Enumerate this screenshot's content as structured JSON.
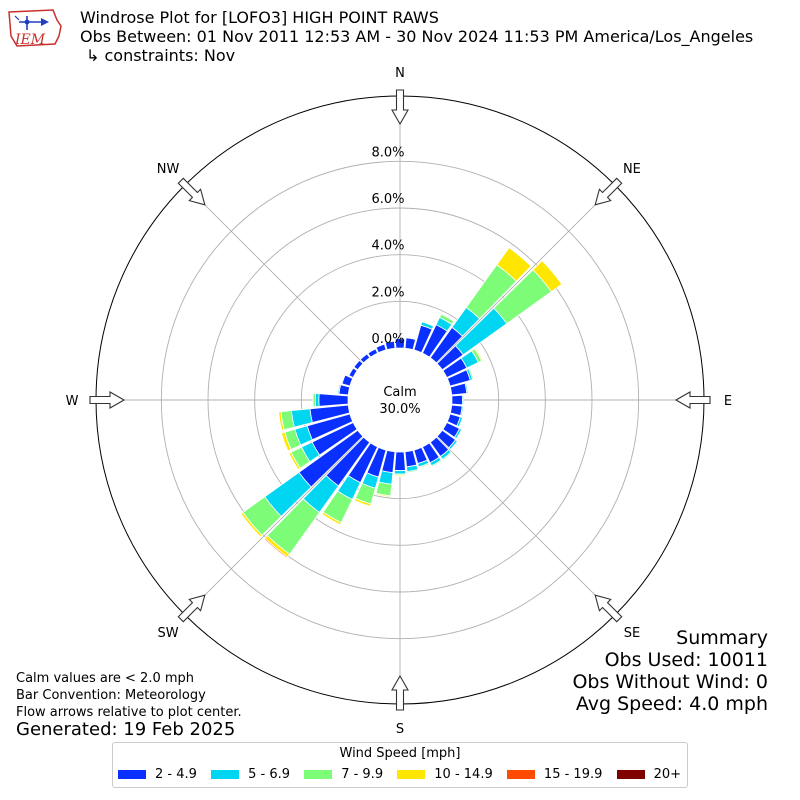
{
  "header": {
    "logo_text": "IEM",
    "title": "Windrose Plot for [LOFO3] HIGH POINT RAWS",
    "subtitle": "Obs Between: 01 Nov 2011 12:53 AM - 30 Nov 2024 11:53 PM America/Los_Angeles",
    "constraints": "↳ constraints: Nov"
  },
  "notes": {
    "calm_note": "Calm values are < 2.0 mph",
    "bar_convention": "Bar Convention: Meteorology",
    "flow_arrows": "Flow arrows relative to plot center.",
    "generated": "Generated: 19 Feb 2025"
  },
  "summary": {
    "heading": "Summary",
    "obs_used": "Obs Used: 10011",
    "obs_without_wind": "Obs Without Wind: 0",
    "avg_speed": "Avg Speed: 4.0 mph"
  },
  "calm": {
    "label": "Calm",
    "value": "30.0%"
  },
  "chart_data": {
    "type": "windrose",
    "directions_deg": [
      0,
      10,
      20,
      30,
      40,
      50,
      60,
      70,
      80,
      90,
      100,
      110,
      120,
      130,
      140,
      150,
      160,
      170,
      180,
      190,
      200,
      210,
      220,
      230,
      240,
      250,
      260,
      270,
      280,
      290,
      300,
      310,
      320,
      330,
      340,
      350
    ],
    "compass_labels": [
      {
        "label": "N",
        "deg": 0
      },
      {
        "label": "NE",
        "deg": 45
      },
      {
        "label": "E",
        "deg": 90
      },
      {
        "label": "SE",
        "deg": 135
      },
      {
        "label": "S",
        "deg": 180
      },
      {
        "label": "SW",
        "deg": 225
      },
      {
        "label": "W",
        "deg": 270
      },
      {
        "label": "NW",
        "deg": 315
      }
    ],
    "radial_ticks": [
      "0.0%",
      "2.0%",
      "4.0%",
      "6.0%",
      "8.0%"
    ],
    "radial_tick_values": [
      0,
      2,
      4,
      6,
      8
    ],
    "rmax": 10.8,
    "legend_title": "Wind Speed [mph]",
    "series": [
      {
        "name": "2 - 4.9",
        "color": "#0a30ff",
        "values": [
          0.4,
          0.45,
          1.1,
          1.35,
          1.6,
          1.1,
          0.95,
          0.9,
          0.65,
          0.45,
          0.45,
          0.45,
          0.6,
          0.7,
          0.75,
          0.75,
          0.6,
          0.65,
          0.8,
          0.9,
          1.2,
          1.7,
          2.3,
          3.1,
          1.95,
          1.9,
          1.65,
          1.25,
          0.4,
          0.35,
          0.2,
          0.2,
          0.2,
          0.2,
          0.25,
          0.3
        ]
      },
      {
        "name": "5 - 6.9",
        "color": "#00d6f2",
        "values": [
          0,
          0,
          0.15,
          0.35,
          1.05,
          2.3,
          0.55,
          0.1,
          0.05,
          0.05,
          0.05,
          0.1,
          0.1,
          0.1,
          0.15,
          0.15,
          0.15,
          0.2,
          0.15,
          0.5,
          0.5,
          0.8,
          1.4,
          1.8,
          0.5,
          0.55,
          0.8,
          0.15,
          0.05,
          0,
          0,
          0,
          0,
          0,
          0,
          0
        ]
      },
      {
        "name": "7 - 9.9",
        "color": "#7cfc77",
        "values": [
          0,
          0,
          0,
          0.15,
          2.25,
          2.35,
          0.15,
          0.05,
          0,
          0,
          0,
          0,
          0,
          0,
          0.05,
          0.05,
          0.05,
          0.05,
          0.05,
          0.5,
          0.7,
          1.1,
          2.2,
          1.15,
          0.5,
          0.45,
          0.45,
          0.1,
          0,
          0,
          0,
          0,
          0,
          0,
          0,
          0
        ]
      },
      {
        "name": "10 - 14.9",
        "color": "#ffe600",
        "values": [
          0,
          0,
          0,
          0,
          0.9,
          0.55,
          0.05,
          0,
          0,
          0,
          0,
          0,
          0,
          0,
          0,
          0,
          0,
          0,
          0.05,
          0.05,
          0.1,
          0.1,
          0.15,
          0.1,
          0.1,
          0.15,
          0.1,
          0,
          0,
          0,
          0,
          0,
          0,
          0,
          0,
          0
        ]
      },
      {
        "name": "15 - 19.9",
        "color": "#ff4b00",
        "values": [
          0,
          0,
          0,
          0,
          0,
          0,
          0,
          0,
          0,
          0,
          0,
          0,
          0,
          0,
          0,
          0,
          0,
          0,
          0,
          0,
          0,
          0,
          0.05,
          0,
          0,
          0,
          0,
          0,
          0,
          0,
          0,
          0,
          0,
          0,
          0,
          0
        ]
      },
      {
        "name": "20+",
        "color": "#800000",
        "values": [
          0,
          0,
          0,
          0,
          0,
          0,
          0,
          0,
          0,
          0,
          0,
          0,
          0,
          0,
          0,
          0,
          0,
          0,
          0,
          0,
          0,
          0,
          0,
          0,
          0,
          0,
          0,
          0,
          0,
          0,
          0,
          0,
          0,
          0,
          0,
          0
        ]
      }
    ]
  }
}
